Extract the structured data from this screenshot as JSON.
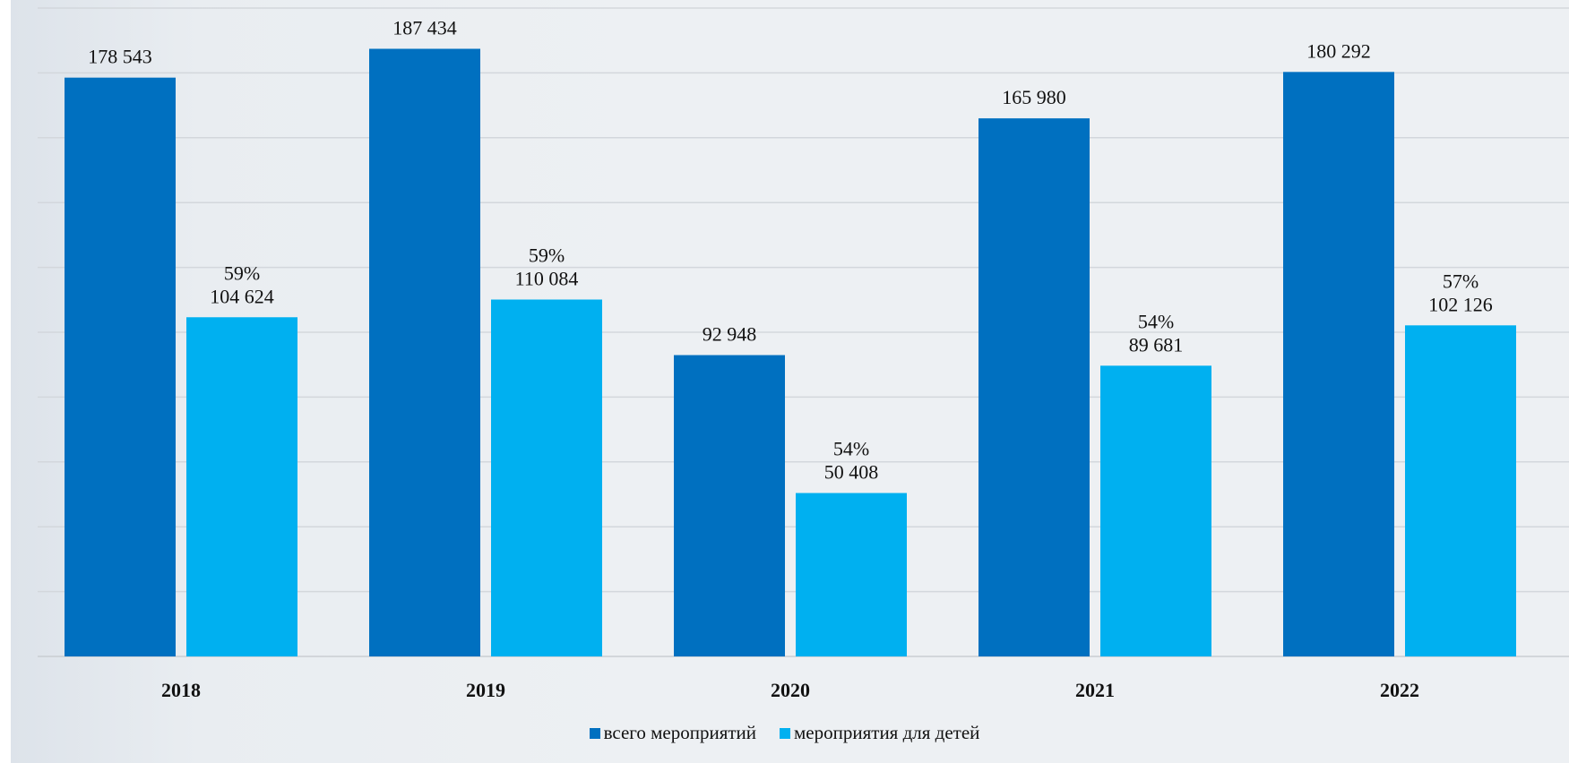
{
  "chart_data": {
    "type": "bar",
    "categories": [
      "2018",
      "2019",
      "2020",
      "2021",
      "2022"
    ],
    "series": [
      {
        "name": "всего мероприятий",
        "color": "#0070c0",
        "values": [
          178543,
          187434,
          92948,
          165980,
          180292
        ],
        "labels": [
          "178 543",
          "187 434",
          "92 948",
          "165 980",
          "180 292"
        ]
      },
      {
        "name": "мероприятия для детей",
        "color": "#00b0f0",
        "values": [
          104624,
          110084,
          50408,
          89681,
          102126
        ],
        "labels": [
          "104 624",
          "110 084",
          "50 408",
          "89 681",
          "102 126"
        ],
        "percent_labels": [
          "59%",
          "59%",
          "54%",
          "54%",
          "57%"
        ]
      }
    ],
    "title": "",
    "xlabel": "",
    "ylabel": "",
    "ylim": [
      0,
      200000
    ],
    "grid": true,
    "y_axis_tick_labels_shown": false,
    "legend_position": "bottom"
  }
}
